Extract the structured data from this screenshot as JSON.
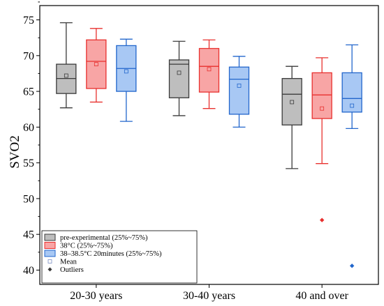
{
  "chart_data": {
    "type": "box",
    "title": "",
    "xlabel": "",
    "ylabel": "SVO2",
    "ylim": [
      38,
      77
    ],
    "yticks": [
      40,
      45,
      50,
      55,
      60,
      65,
      70,
      75
    ],
    "grid": false,
    "legend_position": "bottom-left",
    "categories": [
      "20-30 years",
      "30-40 years",
      "40 and over"
    ],
    "series": [
      {
        "name": "pre-experimental (25%~75%)",
        "fill": "#bebebe",
        "stroke": "#3a3a3a",
        "boxes": [
          {
            "min": 62.7,
            "q1": 64.7,
            "median": 66.8,
            "q3": 68.8,
            "max": 74.6,
            "mean": 67.2,
            "outliers": []
          },
          {
            "min": 61.6,
            "q1": 64.1,
            "median": 68.8,
            "q3": 69.4,
            "max": 72.0,
            "mean": 67.6,
            "outliers": []
          },
          {
            "min": 54.2,
            "q1": 60.3,
            "median": 64.6,
            "q3": 66.8,
            "max": 68.5,
            "mean": 63.5,
            "outliers": []
          }
        ]
      },
      {
        "name": "38°C (25%~75%)",
        "fill": "#f8a5a5",
        "stroke": "#e8302e",
        "boxes": [
          {
            "min": 63.5,
            "q1": 65.4,
            "median": 69.2,
            "q3": 72.2,
            "max": 73.8,
            "mean": 68.8,
            "outliers": []
          },
          {
            "min": 62.6,
            "q1": 64.9,
            "median": 68.5,
            "q3": 71.0,
            "max": 72.2,
            "mean": 68.1,
            "outliers": []
          },
          {
            "min": 54.9,
            "q1": 61.2,
            "median": 64.5,
            "q3": 67.6,
            "max": 69.7,
            "mean": 62.6,
            "outliers": [
              47.0
            ]
          }
        ]
      },
      {
        "name": "38–38.5°C 20minutes (25%~75%)",
        "fill": "#a8c8f4",
        "stroke": "#2266cc",
        "boxes": [
          {
            "min": 60.8,
            "q1": 65.0,
            "median": 68.2,
            "q3": 71.4,
            "max": 72.3,
            "mean": 67.8,
            "outliers": []
          },
          {
            "min": 60.0,
            "q1": 61.8,
            "median": 66.7,
            "q3": 68.4,
            "max": 69.9,
            "mean": 65.8,
            "outliers": []
          },
          {
            "min": 59.8,
            "q1": 62.1,
            "median": 64.0,
            "q3": 67.6,
            "max": 71.5,
            "mean": 63.0,
            "outliers": [
              40.6
            ]
          }
        ]
      }
    ],
    "legend_extra": {
      "mean_label": "Mean",
      "outliers_label": "Outliers"
    }
  }
}
